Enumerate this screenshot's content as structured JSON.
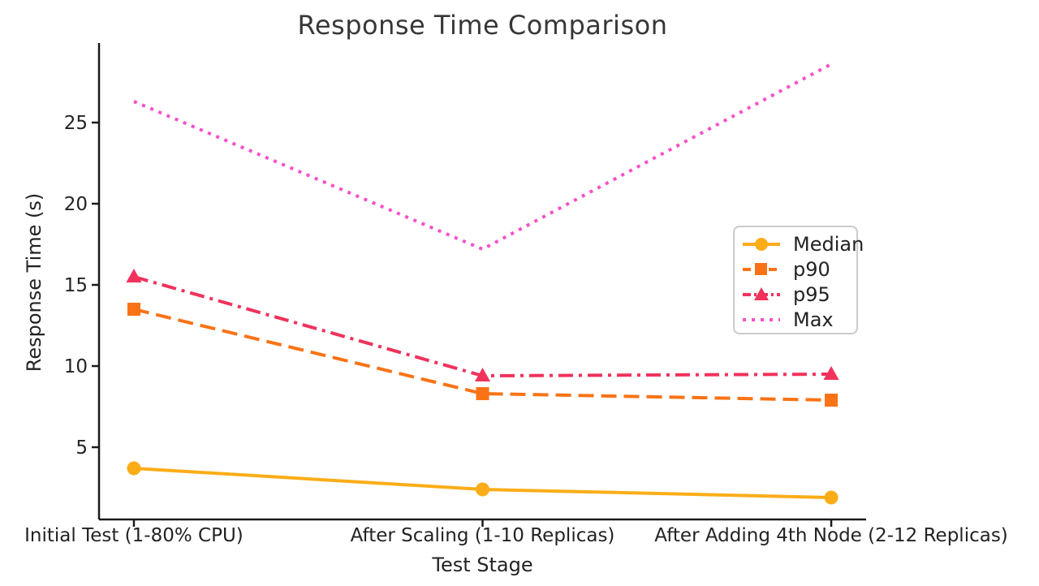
{
  "title": "Response Time Comparison",
  "chart_data": {
    "type": "line",
    "title": "Response Time Comparison",
    "xlabel": "Test Stage",
    "ylabel": "Response Time (s)",
    "categories": [
      "Initial Test (1-80% CPU)",
      "After Scaling (1-10 Replicas)",
      "After Adding 4th Node (2-12 Replicas)"
    ],
    "series": [
      {
        "name": "Median",
        "values": [
          3.7,
          2.4,
          1.9
        ],
        "color": "#FBAD18",
        "linestyle": "solid",
        "marker": "circle"
      },
      {
        "name": "p90",
        "values": [
          13.5,
          8.3,
          7.9
        ],
        "color": "#F97316",
        "linestyle": "dashed",
        "marker": "square"
      },
      {
        "name": "p95",
        "values": [
          15.5,
          9.4,
          9.5
        ],
        "color": "#F0325C",
        "linestyle": "dashdot",
        "marker": "triangle"
      },
      {
        "name": "Max",
        "values": [
          26.3,
          17.2,
          28.6
        ],
        "color": "#F750C8",
        "linestyle": "dotted",
        "marker": "none"
      }
    ],
    "yticks": [
      5,
      10,
      15,
      20,
      25
    ],
    "ylim": [
      0.55,
      29.9
    ],
    "xlim": [
      -0.1,
      2.1
    ],
    "grid": false,
    "legend_position": "right-center",
    "axis_color": "#1a1a1a"
  }
}
